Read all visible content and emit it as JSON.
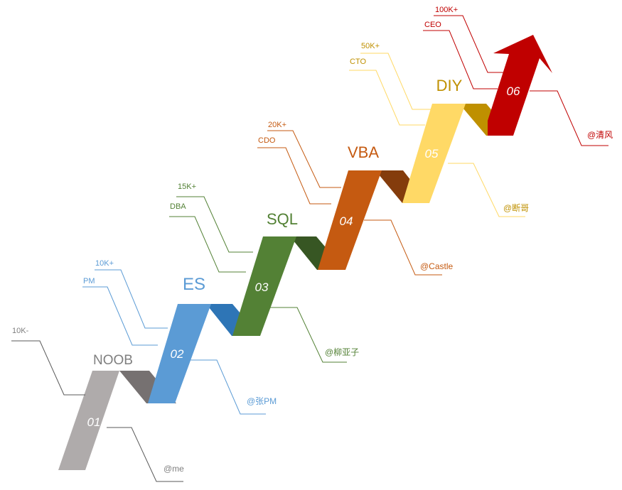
{
  "steps": [
    {
      "num": "01",
      "title": "NOOB",
      "role": "",
      "salary": "10K-",
      "author": "@me",
      "colors": {
        "face": "#AFABAB",
        "side": "#767171",
        "text": "#7F7F7F",
        "line": "#595959"
      }
    },
    {
      "num": "02",
      "title": "ES",
      "role": "PM",
      "salary": "10K+",
      "author": "@张PM",
      "colors": {
        "face": "#5B9BD5",
        "side": "#2E75B6",
        "text": "#5B9BD5",
        "line": "#5B9BD5"
      }
    },
    {
      "num": "03",
      "title": "SQL",
      "role": "DBA",
      "salary": "15K+",
      "author": "@柳亚子",
      "colors": {
        "face": "#538135",
        "side": "#375623",
        "text": "#538135",
        "line": "#538135"
      }
    },
    {
      "num": "04",
      "title": "VBA",
      "role": "CDO",
      "salary": "20K+",
      "author": "@Castle",
      "colors": {
        "face": "#C55A11",
        "side": "#843C0C",
        "text": "#C55A11",
        "line": "#C55A11"
      }
    },
    {
      "num": "05",
      "title": "DIY",
      "role": "CTO",
      "salary": "50K+",
      "author": "@断哥",
      "colors": {
        "face": "#FFD966",
        "side": "#BF9000",
        "text": "#BF9000",
        "line": "#FFD966"
      }
    },
    {
      "num": "06",
      "title": "",
      "role": "CEO",
      "salary": "100K+",
      "author": "@清风",
      "colors": {
        "face": "#C00000",
        "side": "#C00000",
        "text": "#C00000",
        "line": "#C00000"
      }
    }
  ]
}
